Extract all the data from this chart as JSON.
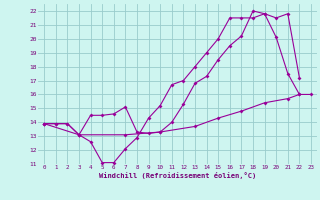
{
  "xlabel": "Windchill (Refroidissement éolien,°C)",
  "xlim": [
    -0.5,
    23.5
  ],
  "ylim": [
    11,
    22.5
  ],
  "xticks": [
    0,
    1,
    2,
    3,
    4,
    5,
    6,
    7,
    8,
    9,
    10,
    11,
    12,
    13,
    14,
    15,
    16,
    17,
    18,
    19,
    20,
    21,
    22,
    23
  ],
  "yticks": [
    11,
    12,
    13,
    14,
    15,
    16,
    17,
    18,
    19,
    20,
    21,
    22
  ],
  "bg_color": "#cef5f0",
  "grid_color": "#99cccc",
  "line_color": "#990099",
  "line1_x": [
    0,
    1,
    2,
    3,
    4,
    5,
    6,
    7,
    8,
    9,
    10,
    11,
    12,
    13,
    14,
    15,
    16,
    17,
    18,
    19,
    20,
    21,
    22
  ],
  "line1_y": [
    13.9,
    13.9,
    13.9,
    13.1,
    12.6,
    11.1,
    11.1,
    12.1,
    12.9,
    14.3,
    15.2,
    16.7,
    17.0,
    18.0,
    19.0,
    20.0,
    21.5,
    21.5,
    21.5,
    21.8,
    20.1,
    17.5,
    16.0
  ],
  "line2_x": [
    0,
    1,
    2,
    3,
    4,
    5,
    6,
    7,
    8,
    9,
    10,
    11,
    12,
    13,
    14,
    15,
    16,
    17,
    18,
    19,
    20,
    21,
    22
  ],
  "line2_y": [
    13.9,
    13.9,
    13.9,
    13.1,
    14.5,
    14.5,
    14.6,
    15.1,
    13.3,
    13.2,
    13.3,
    14.0,
    15.3,
    16.8,
    17.3,
    18.5,
    19.5,
    20.2,
    22.0,
    21.8,
    21.5,
    21.8,
    17.2
  ],
  "line3_x": [
    0,
    3,
    7,
    10,
    13,
    15,
    17,
    19,
    21,
    22,
    23
  ],
  "line3_y": [
    13.9,
    13.1,
    13.1,
    13.3,
    13.7,
    14.3,
    14.8,
    15.4,
    15.7,
    16.0,
    16.0
  ]
}
